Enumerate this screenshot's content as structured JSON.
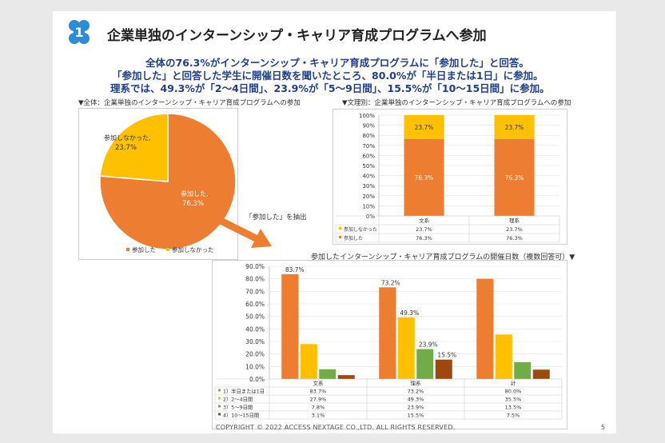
{
  "title": "企業単独のインターンシップ・キャリア育成プログラムへ参加",
  "summary": [
    "全体の76.3%がインターンシップ・キャリア育成プログラムに「参加した」と回答。",
    "「参加した」と回答した学生に開催日数を聞いたところ、80.0%が「半日または1日」に参加。",
    "理系では、49.3%が「2～4日間」、23.9%が「5～9日間」、15.5%が「10～15日間」に参加。"
  ],
  "arrow_label": "「参加した」を抽出",
  "footer": "COPYRIGHT © 2022 ACCESS NEXTAGE CO.,LTD. ALL RIGHTS RESERVED.",
  "page_number": "5",
  "colors": {
    "orange": "#ed7d31",
    "yellow": "#ffc000",
    "green": "#70ad47",
    "brown": "#9e480e",
    "title_blue": "#1f3f86",
    "logo": "#2e8bd6"
  },
  "chart_data": [
    {
      "type": "pie",
      "title": "▼全体：企業単独のインターンシップ・キャリア育成プログラムへの参加",
      "slices": [
        {
          "name": "参加した",
          "value": 76.3,
          "label": "参加した,\n76.3%",
          "color": "#ed7d31"
        },
        {
          "name": "参加しなかった",
          "value": 23.7,
          "label": "参加しなかった,\n23.7%",
          "color": "#ffc000"
        }
      ],
      "legend": [
        "参加した",
        "参加しなかった"
      ],
      "legend_position": "bottom"
    },
    {
      "type": "bar",
      "stacked": true,
      "title": "▼文理別：企業単独のインターンシップ・キャリア育成プログラムへの参加",
      "categories": [
        "文系",
        "理系"
      ],
      "series": [
        {
          "name": "参加しなかった",
          "values": [
            23.7,
            23.7
          ],
          "labels": [
            "23.7%",
            "23.7%"
          ],
          "color": "#ffc000"
        },
        {
          "name": "参加した",
          "values": [
            76.3,
            76.3
          ],
          "labels": [
            "76.3%",
            "76.3%"
          ],
          "color": "#ed7d31"
        }
      ],
      "ylim": [
        0,
        100
      ],
      "yticks": [
        "0%",
        "10%",
        "20%",
        "30%",
        "40%",
        "50%",
        "60%",
        "70%",
        "80%",
        "90%",
        "100%"
      ],
      "data_table": true
    },
    {
      "type": "bar",
      "title": "参加したインターンシップ・キャリア育成プログラムの開催日数（複数回答可）▼",
      "categories": [
        "文系",
        "理系",
        "計"
      ],
      "series": [
        {
          "name": "1）半日または1日",
          "values": [
            83.7,
            73.2,
            80.0
          ],
          "labels": [
            "83.7%",
            "73.2%",
            "80.0%"
          ],
          "color": "#ed7d31"
        },
        {
          "name": "2）2～4日間",
          "values": [
            27.9,
            49.3,
            35.5
          ],
          "labels": [
            "27.9%",
            "49.3%",
            "35.5%"
          ],
          "color": "#ffc000"
        },
        {
          "name": "3）5～9日間",
          "values": [
            7.8,
            23.9,
            13.5
          ],
          "labels": [
            "7.8%",
            "23.9%",
            "13.5%"
          ],
          "color": "#70ad47"
        },
        {
          "name": "4）10～15日間",
          "values": [
            3.1,
            15.5,
            7.5
          ],
          "labels": [
            "3.1%",
            "15.5%",
            "7.5%"
          ],
          "color": "#9e480e"
        }
      ],
      "data_labels_shown": [
        "83.7%",
        "73.2%",
        "49.3%",
        "23.9%",
        "15.5%"
      ],
      "ylim": [
        0,
        90
      ],
      "yticks": [
        "0.0%",
        "10.0%",
        "20.0%",
        "30.0%",
        "40.0%",
        "50.0%",
        "60.0%",
        "70.0%",
        "80.0%",
        "90.0%"
      ],
      "data_table": true,
      "grid": true
    }
  ]
}
